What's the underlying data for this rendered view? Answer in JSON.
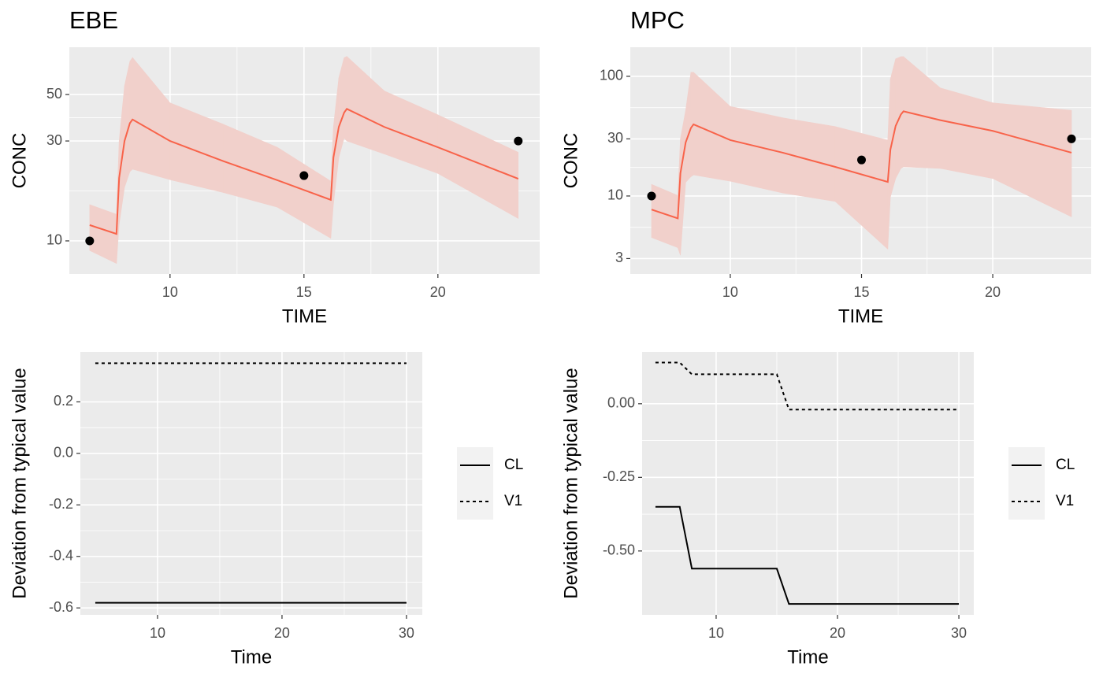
{
  "chart_data": [
    {
      "type": "ribbon",
      "title": "EBE",
      "x_label": "TIME",
      "y_label": "CONC",
      "log_y": true,
      "grid": true,
      "xlim": [
        6.24,
        23.8
      ],
      "ylim": [
        6.95,
        84.1
      ],
      "xticks": [
        10,
        15,
        20
      ],
      "yticks": [
        10,
        30,
        50
      ],
      "x": [
        7,
        8,
        8.1,
        8.3,
        8.5,
        8.6,
        10,
        12,
        14,
        16,
        16.1,
        16.3,
        16.5,
        16.6,
        18,
        20,
        23
      ],
      "line": {
        "color": "#f8634a",
        "values": [
          11.9,
          10.8,
          20,
          30,
          36.5,
          38,
          30,
          24,
          19.5,
          15.7,
          25,
          35,
          41,
          42.7,
          35,
          28,
          19.8
        ]
      },
      "ribbon": {
        "color": "#f1d0cb",
        "upper": [
          14.9,
          13.4,
          30,
          55,
          72,
          75,
          45.6,
          36,
          28,
          19.3,
          35,
          60,
          75,
          76,
          52,
          40,
          26.5
        ],
        "lower": [
          9.0,
          7.8,
          12,
          18,
          21.4,
          22,
          19.6,
          17,
          14.5,
          10.3,
          15,
          25,
          31,
          30,
          26,
          21,
          12.8
        ]
      },
      "points": {
        "color": "#000000",
        "x": [
          7,
          15,
          23
        ],
        "values": [
          10,
          20.5,
          30
        ]
      }
    },
    {
      "type": "ribbon",
      "title": "MPC",
      "x_label": "TIME",
      "y_label": "CONC",
      "log_y": true,
      "grid": true,
      "xlim": [
        6.19,
        23.75
      ],
      "ylim": [
        2.23,
        175
      ],
      "xticks": [
        10,
        15,
        20
      ],
      "yticks": [
        3,
        10,
        30,
        100
      ],
      "x": [
        7,
        8,
        8.1,
        8.3,
        8.5,
        8.6,
        10,
        12,
        14,
        16,
        16.1,
        16.3,
        16.5,
        16.6,
        18,
        20,
        23
      ],
      "line": {
        "color": "#f8634a",
        "values": [
          7.7,
          6.5,
          15.5,
          28,
          37,
          39.7,
          29.3,
          23,
          17.5,
          13.1,
          24.4,
          38.5,
          48,
          51,
          43,
          35,
          23
        ]
      },
      "ribbon": {
        "color": "#f1d0cb",
        "upper": [
          12.5,
          10.1,
          30,
          52,
          108,
          108,
          56,
          45,
          38,
          29.3,
          95,
          140,
          146,
          146,
          80,
          60,
          52
        ],
        "lower": [
          4.5,
          3.7,
          3.2,
          13,
          14.5,
          15,
          13.3,
          10.6,
          9,
          3.6,
          9.8,
          14,
          17,
          17.5,
          17,
          14,
          6.7
        ]
      },
      "points": {
        "color": "#000000",
        "x": [
          7,
          15,
          23
        ],
        "values": [
          10,
          20,
          30
        ]
      }
    },
    {
      "type": "line",
      "x_label": "Time",
      "y_label": "Deviation from typical value",
      "grid": true,
      "legend": "right",
      "xlim": [
        3.8,
        31.27
      ],
      "ylim": [
        -0.627,
        0.394
      ],
      "xticks": [
        10,
        20,
        30
      ],
      "yticks": [
        -0.6,
        -0.4,
        -0.2,
        {
          "value": 0,
          "label": "0.0"
        },
        0.2
      ],
      "x": [
        5,
        30
      ],
      "series": [
        {
          "name": "CL",
          "color": "#000000",
          "dash": "solid",
          "values": [
            -0.58,
            -0.58
          ]
        },
        {
          "name": "V1",
          "color": "#000000",
          "dash": "dashed",
          "values": [
            0.35,
            0.35
          ]
        }
      ]
    },
    {
      "type": "line",
      "x_label": "Time",
      "y_label": "Deviation from typical value",
      "grid": true,
      "legend": "right",
      "xlim": [
        3.9,
        31.23
      ],
      "ylim": [
        -0.717,
        0.176
      ],
      "xticks": [
        10,
        20,
        30
      ],
      "yticks": [
        {
          "value": -0.5,
          "label": "-0.50"
        },
        {
          "value": -0.25,
          "label": "-0.25"
        },
        {
          "value": 0,
          "label": "0.00"
        }
      ],
      "x": [
        5,
        7,
        8,
        15,
        16,
        30
      ],
      "series": [
        {
          "name": "CL",
          "color": "#000000",
          "dash": "solid",
          "values": [
            -0.35,
            -0.35,
            -0.56,
            -0.56,
            -0.68,
            -0.68
          ]
        },
        {
          "name": "V1",
          "color": "#000000",
          "dash": "dashed",
          "values": [
            0.14,
            0.14,
            0.1,
            0.1,
            -0.02,
            -0.02
          ]
        }
      ]
    }
  ]
}
